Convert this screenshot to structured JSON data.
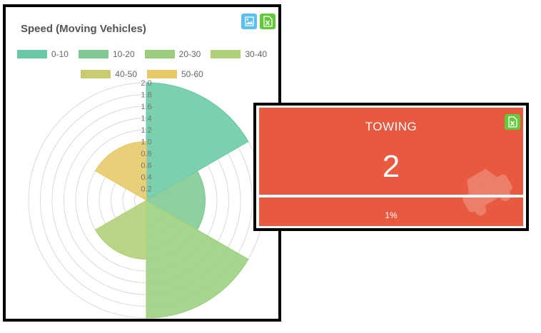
{
  "chart_panel": {
    "icons": {
      "image": "image-download-icon",
      "excel": "excel-export-icon"
    }
  },
  "chart_data": {
    "type": "polar-area",
    "title": "Speed (Moving Vehicles)",
    "categories": [
      "0-10",
      "10-20",
      "20-30",
      "30-40",
      "40-50",
      "50-60"
    ],
    "values": [
      2.0,
      1.0,
      2.0,
      1.0,
      0.0,
      1.0
    ],
    "colors": [
      "#68c9a4",
      "#80c994",
      "#9bcf7d",
      "#b1cf76",
      "#c8cc6f",
      "#e6c868"
    ],
    "r_ticks": [
      "0.2",
      "0.4",
      "0.6",
      "0.8",
      "1.0",
      "1.2",
      "1.4",
      "1.6",
      "1.8",
      "2.0"
    ],
    "rlim": [
      0,
      2.0
    ],
    "legend_position": "top",
    "grid": true
  },
  "towing_card": {
    "title": "TOWING",
    "value": "2",
    "percent": "1%",
    "bg_color": "#e85a3f",
    "icons": {
      "export": "excel-export-icon",
      "background": "car-icon"
    }
  }
}
